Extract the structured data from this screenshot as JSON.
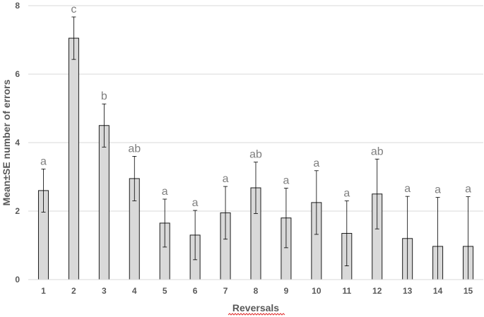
{
  "chart_data": {
    "type": "bar",
    "categories": [
      "1",
      "2",
      "3",
      "4",
      "5",
      "6",
      "7",
      "8",
      "9",
      "10",
      "11",
      "12",
      "13",
      "14",
      "15"
    ],
    "values": [
      2.6,
      7.05,
      4.5,
      2.95,
      1.65,
      1.3,
      1.95,
      2.68,
      1.8,
      2.25,
      1.35,
      2.5,
      1.2,
      0.97,
      0.97
    ],
    "errors": [
      0.63,
      0.62,
      0.63,
      0.65,
      0.7,
      0.72,
      0.77,
      0.75,
      0.87,
      0.93,
      0.95,
      1.02,
      1.23,
      1.43,
      1.45
    ],
    "significance_letters": [
      "a",
      "c",
      "b",
      "ab",
      "a",
      "a",
      "a",
      "ab",
      "a",
      "a",
      "a",
      "ab",
      "a",
      "a",
      "a"
    ],
    "xlabel": "Reversals",
    "ylabel": "Mean±SE number of errors",
    "ylim": [
      0,
      8
    ],
    "yticks": [
      0,
      2,
      4,
      6,
      8
    ],
    "grid": true,
    "colors": {
      "bar_fill": "#d9d9d9",
      "bar_stroke": "#1a1a1a",
      "grid": "#d9d9d9",
      "text": "#595959",
      "letters": "#7f7f7f",
      "squiggle": "#e03030"
    }
  }
}
